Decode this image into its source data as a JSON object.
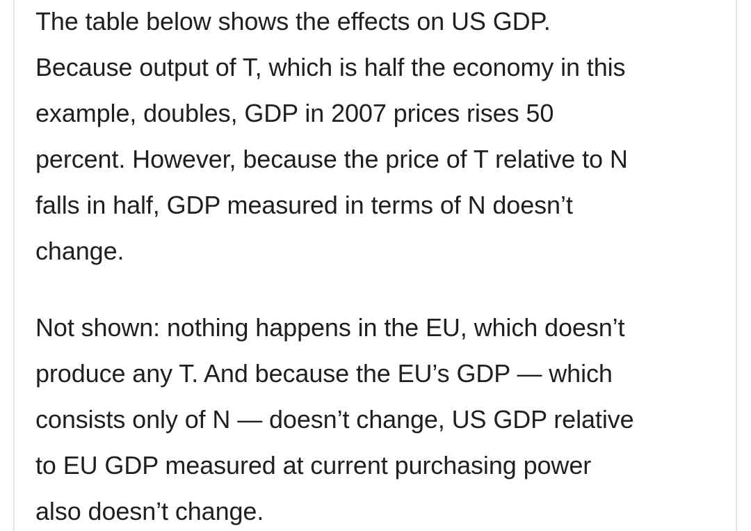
{
  "article": {
    "paragraphs": [
      {
        "lines": [
          "The table below shows the effects on US GDP.",
          "Because output of T, which is half the economy in this",
          "example, doubles, GDP in 2007 prices rises 50",
          "percent. However, because the price of T relative to N",
          "falls in half, GDP measured in terms of N doesn’t",
          "change."
        ]
      },
      {
        "lines": [
          "Not shown: nothing happens in the EU, which doesn’t",
          "produce any T. And because the EU’s GDP — which",
          "consists only of N — doesn’t change, US GDP relative",
          "to EU GDP measured at current purchasing power",
          "also doesn’t change."
        ]
      }
    ]
  }
}
